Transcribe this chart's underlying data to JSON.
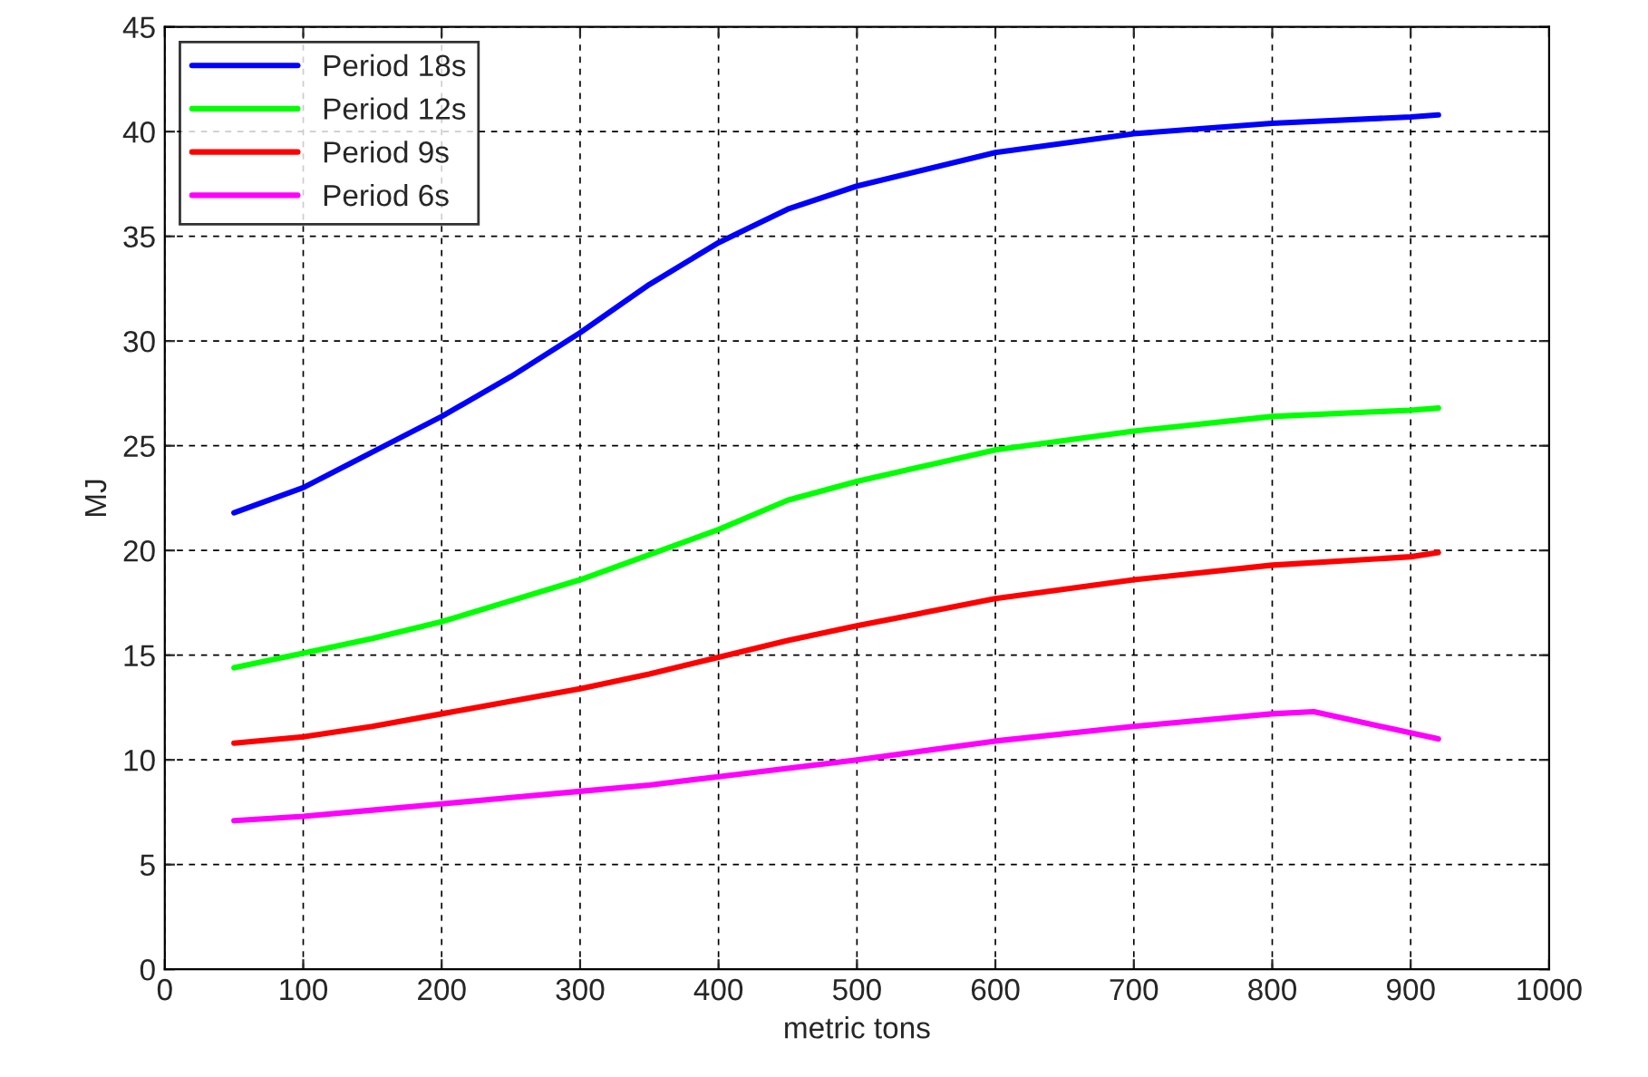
{
  "chart_data": {
    "type": "line",
    "xlabel": "metric tons",
    "ylabel": "MJ",
    "xlim": [
      0,
      1000
    ],
    "ylim": [
      0,
      45
    ],
    "xticks": [
      0,
      100,
      200,
      300,
      400,
      500,
      600,
      700,
      800,
      900,
      1000
    ],
    "yticks": [
      0,
      5,
      10,
      15,
      20,
      25,
      30,
      35,
      40,
      45
    ],
    "grid": true,
    "legend": "top left",
    "line_style": "solid",
    "marker": "none",
    "x": [
      50,
      100,
      150,
      200,
      250,
      300,
      350,
      400,
      450,
      500,
      600,
      700,
      800,
      900,
      920
    ],
    "series": [
      {
        "name": "Period 18s",
        "color": "#0000ff",
        "values": [
          21.8,
          23.0,
          24.7,
          26.4,
          28.3,
          30.4,
          32.7,
          34.7,
          36.3,
          37.4,
          39.0,
          39.9,
          40.4,
          40.7,
          40.8
        ]
      },
      {
        "name": "Period 12s",
        "color": "#00ff00",
        "values": [
          14.4,
          15.1,
          15.8,
          16.6,
          17.6,
          18.6,
          19.8,
          21.0,
          22.4,
          23.3,
          24.8,
          25.7,
          26.4,
          26.7,
          26.8
        ]
      },
      {
        "name": "Period 9s",
        "color": "#ff0000",
        "values": [
          10.8,
          11.1,
          11.6,
          12.2,
          12.8,
          13.4,
          14.1,
          14.9,
          15.7,
          16.4,
          17.7,
          18.6,
          19.3,
          19.7,
          19.9
        ]
      },
      {
        "name": "Period 6s",
        "color": "#ff00ff",
        "x": [
          50,
          100,
          150,
          200,
          250,
          300,
          350,
          400,
          450,
          500,
          600,
          700,
          800,
          830,
          920
        ],
        "values": [
          7.1,
          7.3,
          7.6,
          7.9,
          8.2,
          8.5,
          8.8,
          9.2,
          9.6,
          10.0,
          10.9,
          11.6,
          12.2,
          12.3,
          11.0
        ]
      }
    ]
  }
}
